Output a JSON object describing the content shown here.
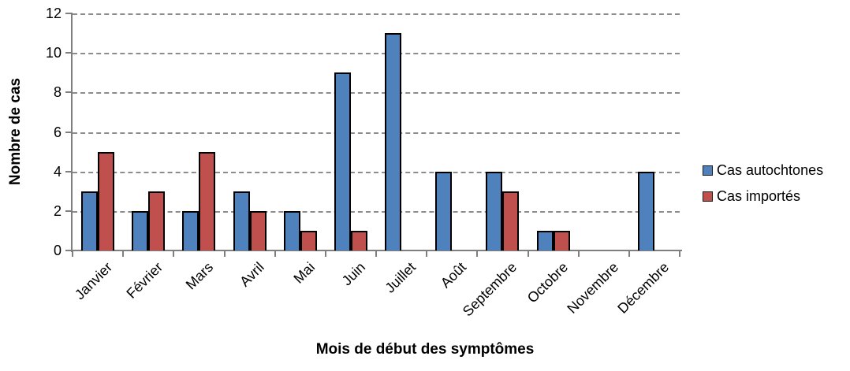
{
  "chart_data": {
    "type": "bar",
    "title": "",
    "categories": [
      "Janvier",
      "Février",
      "Mars",
      "Avril",
      "Mai",
      "Juin",
      "Juillet",
      "Août",
      "Septembre",
      "Octobre",
      "Novembre",
      "Décembre"
    ],
    "series": [
      {
        "name": "Cas autochtones",
        "color": "#4F81BD",
        "values": [
          3,
          2,
          2,
          3,
          2,
          9,
          11,
          4,
          4,
          1,
          0,
          4
        ]
      },
      {
        "name": "Cas importés",
        "color": "#C0504D",
        "values": [
          5,
          3,
          5,
          2,
          1,
          1,
          0,
          0,
          3,
          1,
          0,
          0
        ]
      }
    ],
    "xlabel": "Mois de début des symptômes",
    "ylabel": "Nombre de cas",
    "ylim": [
      0,
      12
    ],
    "yticks": [
      0,
      2,
      4,
      6,
      8,
      10,
      12
    ],
    "grid": "horizontal-dashed-gray",
    "legend_position": "right",
    "bar_border_color": "#000000",
    "axis_color": "#7f7f7f"
  }
}
